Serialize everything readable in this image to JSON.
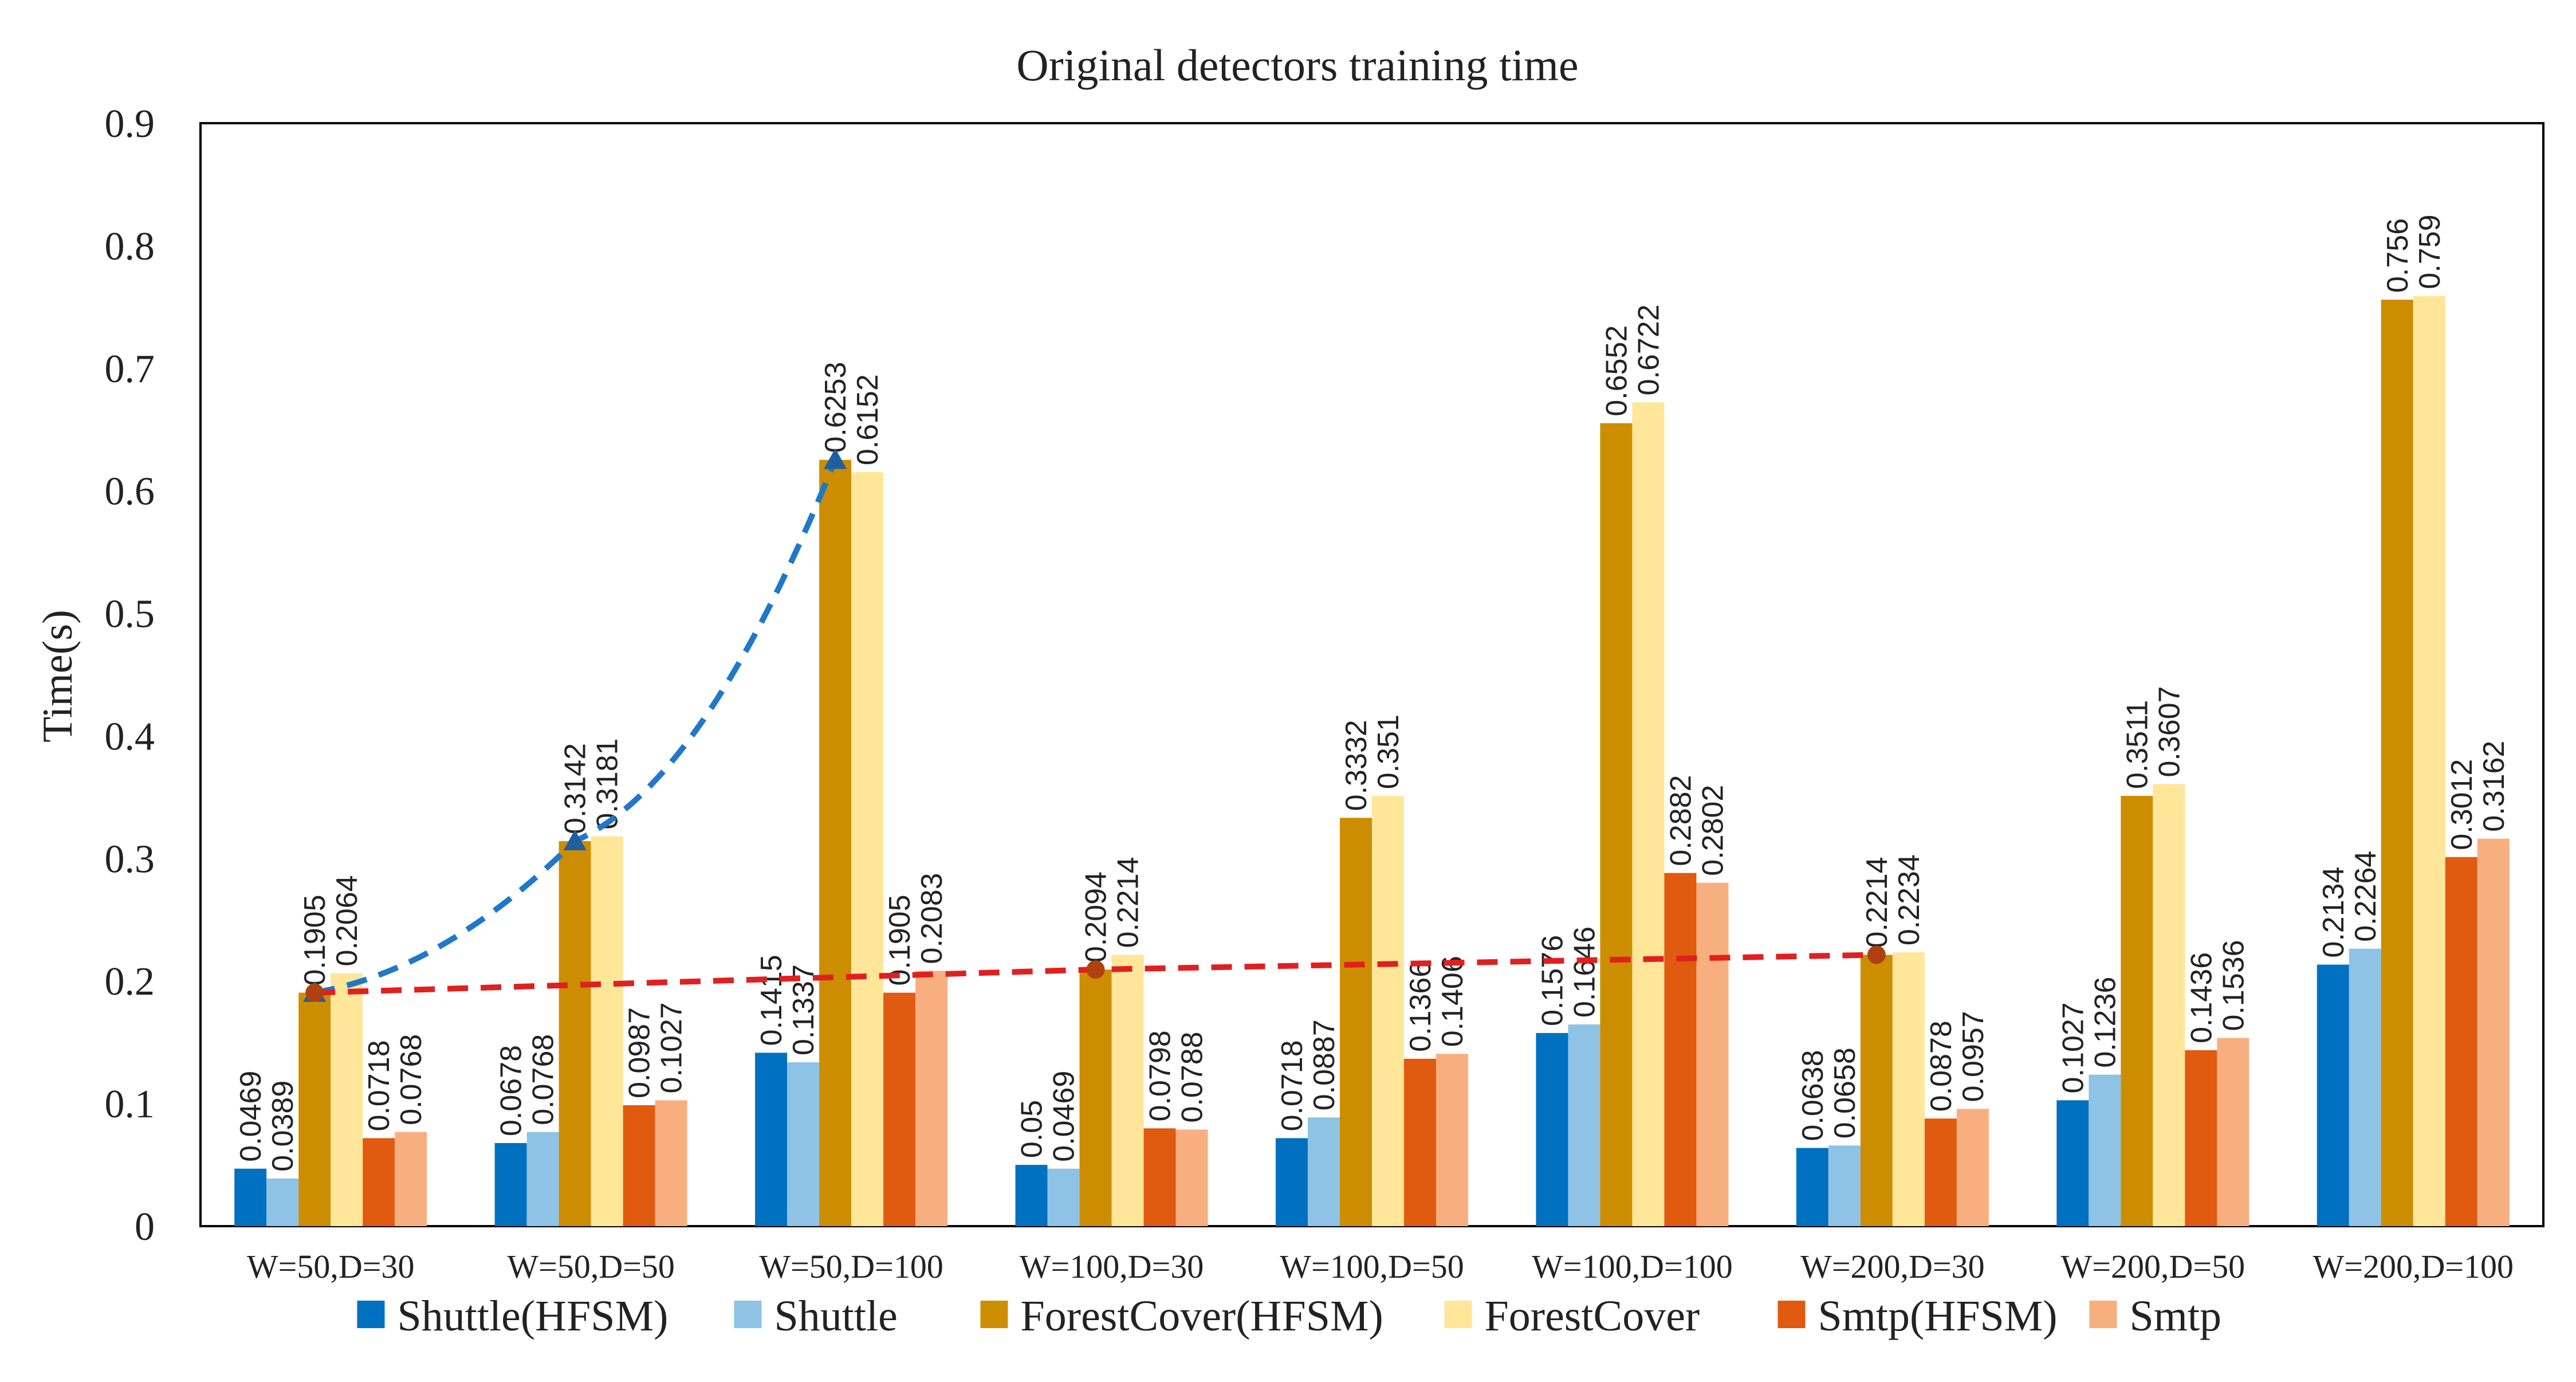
{
  "chart_data": {
    "type": "bar",
    "title": "Original  detectors training time",
    "xlabel": "",
    "ylabel": "Time(s)",
    "ylim": [
      0,
      0.9
    ],
    "yticks": [
      "0",
      "0.1",
      "0.2",
      "0.3",
      "0.4",
      "0.5",
      "0.6",
      "0.7",
      "0.8",
      "0.9"
    ],
    "grid": false,
    "legend_position": "bottom",
    "categories": [
      "W=50,D=30",
      "W=50,D=50",
      "W=50,D=100",
      "W=100,D=30",
      "W=100,D=50",
      "W=100,D=100",
      "W=200,D=30",
      "W=200,D=50",
      "W=200,D=100"
    ],
    "series": [
      {
        "name": "Shuttle(HFSM)",
        "color": "#0070C0",
        "values": [
          0.0469,
          0.0678,
          0.1415,
          0.05,
          0.0718,
          0.1576,
          0.0638,
          0.1027,
          0.2134
        ],
        "labels": [
          "0.0469",
          "0.0678",
          "0.1415",
          "0.05",
          "0.0718",
          "0.1576",
          "0.0638",
          "0.1027",
          "0.2134"
        ]
      },
      {
        "name": "Shuttle",
        "color": "#8EC3E6",
        "values": [
          0.0389,
          0.0768,
          0.1337,
          0.0469,
          0.0887,
          0.1646,
          0.0658,
          0.1236,
          0.2264
        ],
        "labels": [
          "0.0389",
          "0.0768",
          "0.1337",
          "0.0469",
          "0.0887",
          "0.1646",
          "0.0658",
          "0.1236",
          "0.2264"
        ]
      },
      {
        "name": "ForestCover(HFSM)",
        "color": "#CC8E00",
        "values": [
          0.1905,
          0.3142,
          0.6253,
          0.2094,
          0.3332,
          0.6552,
          0.2214,
          0.3511,
          0.756
        ],
        "labels": [
          "0.1905",
          "0.3142",
          "0.6253",
          "0.2094",
          "0.3332",
          "0.6552",
          "0.2214",
          "0.3511",
          "0.756"
        ]
      },
      {
        "name": "ForestCover",
        "color": "#FFE699",
        "values": [
          0.2064,
          0.3181,
          0.6152,
          0.2214,
          0.351,
          0.6722,
          0.2234,
          0.3607,
          0.759
        ],
        "labels": [
          "0.2064",
          "0.3181",
          "0.6152",
          "0.2214",
          "0.351",
          "0.6722",
          "0.2234",
          "0.3607",
          "0.759"
        ]
      },
      {
        "name": "Smtp(HFSM)",
        "color": "#E05A10",
        "values": [
          0.0718,
          0.0987,
          0.1905,
          0.0798,
          0.1366,
          0.2882,
          0.0878,
          0.1436,
          0.3012
        ],
        "labels": [
          "0.0718",
          "0.0987",
          "0.1905",
          "0.0798",
          "0.1366",
          "0.2882",
          "0.0878",
          "0.1436",
          "0.3012"
        ]
      },
      {
        "name": "Smtp",
        "color": "#F8AF80",
        "values": [
          0.0768,
          0.1027,
          0.2083,
          0.0788,
          0.1406,
          0.2802,
          0.0957,
          0.1536,
          0.3162
        ],
        "labels": [
          "0.0768",
          "0.1027",
          "0.2083",
          "0.0788",
          "0.1406",
          "0.2802",
          "0.0957",
          "0.1536",
          "0.3162"
        ]
      }
    ],
    "annotations": [
      {
        "style": "dashed-curve",
        "marker": "triangle",
        "color": "#1F78C8",
        "points": [
          {
            "category": "W=50,D=30",
            "y": 0.1905
          },
          {
            "category": "W=50,D=50",
            "y": 0.3142
          },
          {
            "category": "W=50,D=100",
            "y": 0.6253
          }
        ]
      },
      {
        "style": "dashed-line",
        "marker": "circle",
        "color": "#E02020",
        "marker_color": "#B04010",
        "points": [
          {
            "category": "W=50,D=30",
            "y": 0.1905
          },
          {
            "category": "W=100,D=30",
            "y": 0.2094
          },
          {
            "category": "W=200,D=30",
            "y": 0.2214
          }
        ]
      }
    ]
  }
}
